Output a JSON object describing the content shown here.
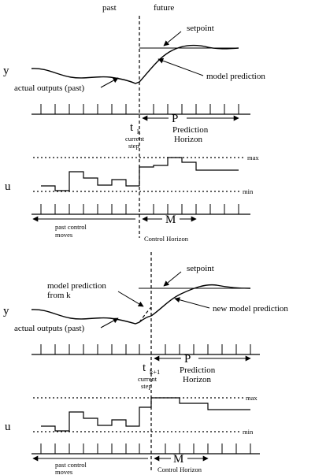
{
  "header": {
    "past": "past",
    "future": "future"
  },
  "top": {
    "y_label": "y",
    "u_label": "u",
    "setpoint": "setpoint",
    "model_prediction": "model prediction",
    "actual_outputs": "actual outputs (past)",
    "t": "t",
    "t_sub": "k",
    "current_step_1": "current",
    "current_step_2": "step",
    "P": "P",
    "prediction_1": "Prediction",
    "prediction_2": "Horizon",
    "max": "max",
    "min": "min",
    "past_moves_1": "past control",
    "past_moves_2": "moves",
    "M": "M",
    "control_horizon": "Control Horizon"
  },
  "bottom": {
    "y_label": "y",
    "u_label": "u",
    "setpoint": "setpoint",
    "model_prediction_from_k_1": "model prediction",
    "model_prediction_from_k_2": "from k",
    "new_model_prediction": "new model prediction",
    "actual_outputs": "actual outputs (past)",
    "t": "t",
    "t_sub": "k+1",
    "current_step_1": "current",
    "current_step_2": "step",
    "P": "P",
    "prediction_1": "Prediction",
    "prediction_2": "Horizon",
    "max": "max",
    "min": "min",
    "past_moves_1": "past control",
    "past_moves_2": "moves",
    "M": "M",
    "control_horizon": "Control Horizon"
  }
}
